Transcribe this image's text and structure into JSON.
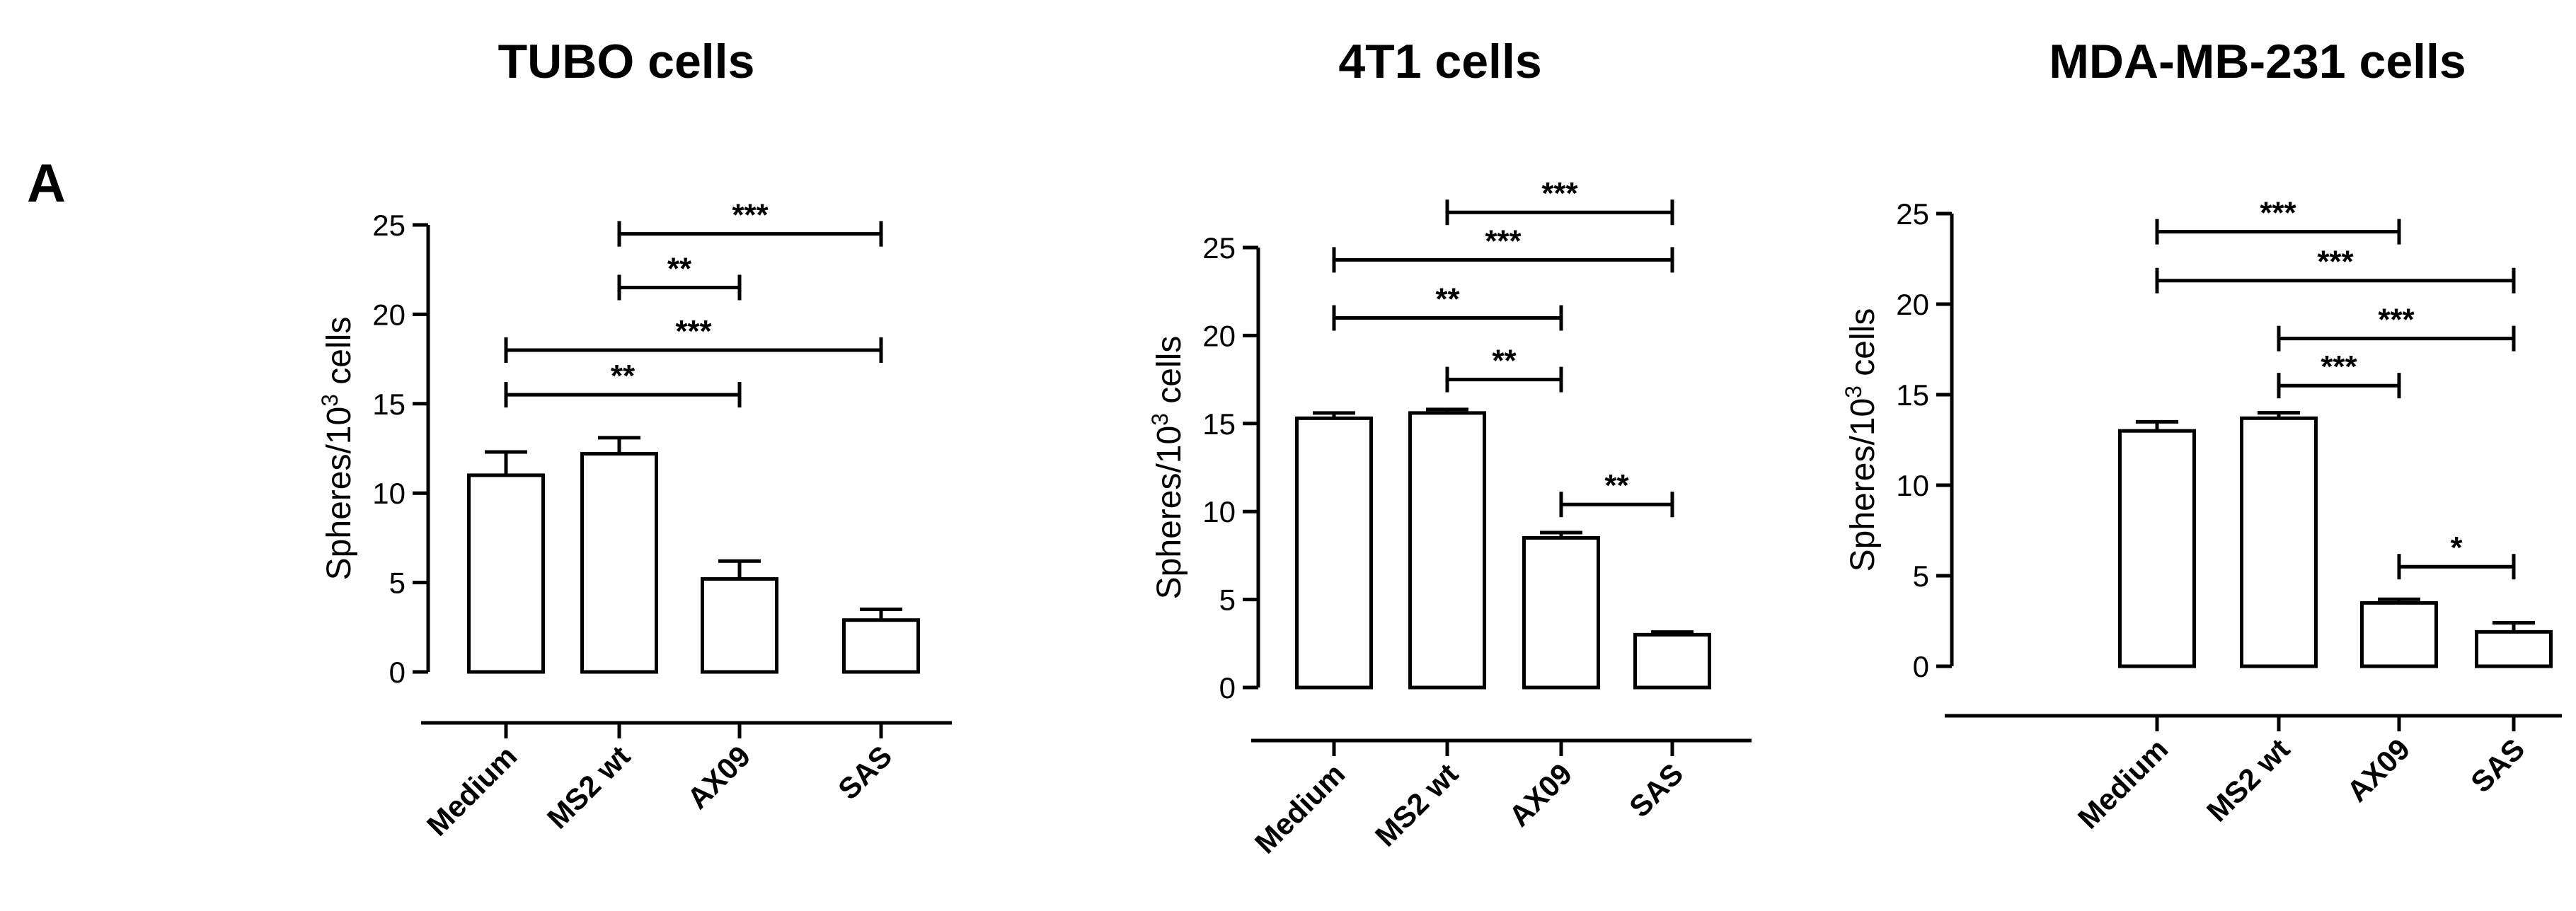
{
  "figure": {
    "panel_label": "A"
  },
  "chart_data": [
    {
      "type": "bar",
      "title": "TUBO cells",
      "ylabel": "Spheres/10",
      "ylabel_sup": "3",
      "ylabel_tail": " cells",
      "categories": [
        "Medium",
        "MS2 wt",
        "AX09",
        "SAS"
      ],
      "values": [
        11.0,
        12.2,
        5.2,
        2.9
      ],
      "errors": [
        1.3,
        0.9,
        1.0,
        0.6
      ],
      "ylim": [
        0,
        25
      ],
      "yticks": [
        "0",
        "5",
        "10",
        "15",
        "20",
        "25"
      ],
      "significance": [
        {
          "from": 1,
          "to": 3,
          "y": 24.5,
          "label": "***"
        },
        {
          "from": 1,
          "to": 2,
          "y": 21.5,
          "label": "**"
        },
        {
          "from": 0,
          "to": 3,
          "y": 18.0,
          "label": "***"
        },
        {
          "from": 0,
          "to": 2,
          "y": 15.5,
          "label": "**"
        }
      ]
    },
    {
      "type": "bar",
      "title": "4T1 cells",
      "ylabel": "Spheres/10",
      "ylabel_sup": "3",
      "ylabel_tail": " cells",
      "categories": [
        "Medium",
        "MS2 wt",
        "AX09",
        "SAS"
      ],
      "values": [
        15.3,
        15.6,
        8.5,
        3.0
      ],
      "errors": [
        0.3,
        0.2,
        0.3,
        0.15
      ],
      "ylim": [
        0,
        25
      ],
      "yticks": [
        "0",
        "5",
        "10",
        "15",
        "20",
        "25"
      ],
      "significance": [
        {
          "from": 1,
          "to": 3,
          "y": 27.0,
          "label": "***"
        },
        {
          "from": 0,
          "to": 3,
          "y": 24.3,
          "label": "***"
        },
        {
          "from": 0,
          "to": 2,
          "y": 21.0,
          "label": "**"
        },
        {
          "from": 1,
          "to": 2,
          "y": 17.5,
          "label": "**"
        },
        {
          "from": 2,
          "to": 3,
          "y": 10.4,
          "label": "**"
        }
      ]
    },
    {
      "type": "bar",
      "title": "MDA-MB-231 cells",
      "ylabel": "Spheres/10",
      "ylabel_sup": "3",
      "ylabel_tail": " cells",
      "categories": [
        "Medium",
        "MS2 wt",
        "AX09",
        "SAS"
      ],
      "values": [
        13.0,
        13.7,
        3.5,
        1.9
      ],
      "errors": [
        0.5,
        0.3,
        0.2,
        0.5
      ],
      "ylim": [
        0,
        25
      ],
      "yticks": [
        "0",
        "5",
        "10",
        "15",
        "20",
        "25"
      ],
      "significance": [
        {
          "from": 0,
          "to": 2,
          "y": 24.0,
          "label": "***"
        },
        {
          "from": 0,
          "to": 3,
          "y": 21.3,
          "label": "***"
        },
        {
          "from": 1,
          "to": 3,
          "y": 18.1,
          "label": "***"
        },
        {
          "from": 1,
          "to": 2,
          "y": 15.5,
          "label": "***"
        },
        {
          "from": 2,
          "to": 3,
          "y": 5.5,
          "label": "*"
        }
      ]
    }
  ]
}
